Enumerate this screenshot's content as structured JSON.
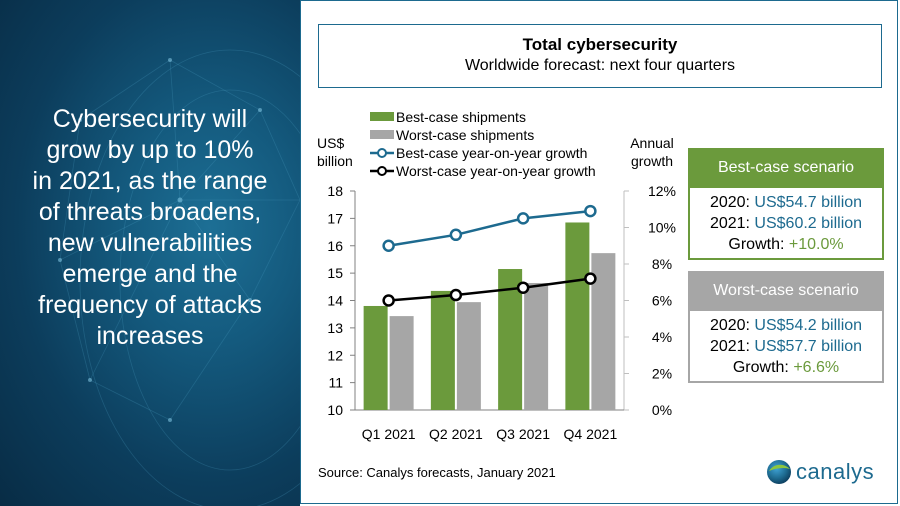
{
  "left_panel": {
    "lines": [
      "Cybersecurity will",
      "grow by up to 10%",
      "in 2021, as the range",
      "of threats broadens,",
      "new vulnerabilities",
      "emerge and the",
      "frequency of attacks",
      "increases"
    ]
  },
  "header": {
    "title": "Total cybersecurity",
    "subtitle": "Worldwide forecast: next four quarters"
  },
  "scenarios": {
    "best": {
      "title": "Best-case scenario",
      "line1_label": "2020: ",
      "line1_value": "US$54.7 billion",
      "line2_label": "2021: ",
      "line2_value": "US$60.2 billion",
      "growth_label": "Growth: ",
      "growth_value": "+10.0%"
    },
    "worst": {
      "title": "Worst-case scenario",
      "line1_label": "2020: ",
      "line1_value": "US$54.2 billion",
      "line2_label": "2021: ",
      "line2_value": "US$57.7 billion",
      "growth_label": "Growth: ",
      "growth_value": "+6.6%"
    }
  },
  "source": "Source: Canalys forecasts, January 2021",
  "logo": {
    "text": "canalys",
    "icon": "globe-icon"
  },
  "colors": {
    "best_bar": "#6b9a3c",
    "worst_bar": "#a6a6a6",
    "best_line": "#1d6a8f",
    "worst_line": "#000000",
    "accent": "#1d6a8f"
  },
  "chart_data": {
    "type": "bar",
    "title": "Total cybersecurity",
    "subtitle": "Worldwide forecast: next four quarters",
    "categories": [
      "Q1 2021",
      "Q2 2021",
      "Q3 2021",
      "Q4 2021"
    ],
    "ylabel": "US$ billion",
    "ylabel_lines": [
      "US$",
      "billion"
    ],
    "ylim": [
      10,
      18
    ],
    "yticks": [
      10,
      11,
      12,
      13,
      14,
      15,
      16,
      17,
      18
    ],
    "y2label": "Annual growth",
    "y2label_lines": [
      "Annual",
      "growth"
    ],
    "y2lim": [
      0,
      12
    ],
    "y2ticks": [
      "0%",
      "2%",
      "4%",
      "6%",
      "8%",
      "10%",
      "12%"
    ],
    "y2tick_values": [
      0,
      2,
      4,
      6,
      8,
      10,
      12
    ],
    "grid": false,
    "legend_position": "top",
    "series": [
      {
        "name": "Best-case shipments",
        "kind": "bar",
        "axis": "left",
        "values": [
          13.8,
          14.35,
          15.15,
          16.85
        ]
      },
      {
        "name": "Worst-case shipments",
        "kind": "bar",
        "axis": "left",
        "values": [
          13.43,
          13.94,
          14.64,
          15.73
        ]
      },
      {
        "name": "Best-case year-on-year growth",
        "kind": "line",
        "axis": "right",
        "unit": "%",
        "values": [
          9.0,
          9.6,
          10.5,
          10.9
        ]
      },
      {
        "name": "Worst-case year-on-year growth",
        "kind": "line",
        "axis": "right",
        "unit": "%",
        "values": [
          6.0,
          6.3,
          6.7,
          7.2
        ]
      }
    ]
  }
}
